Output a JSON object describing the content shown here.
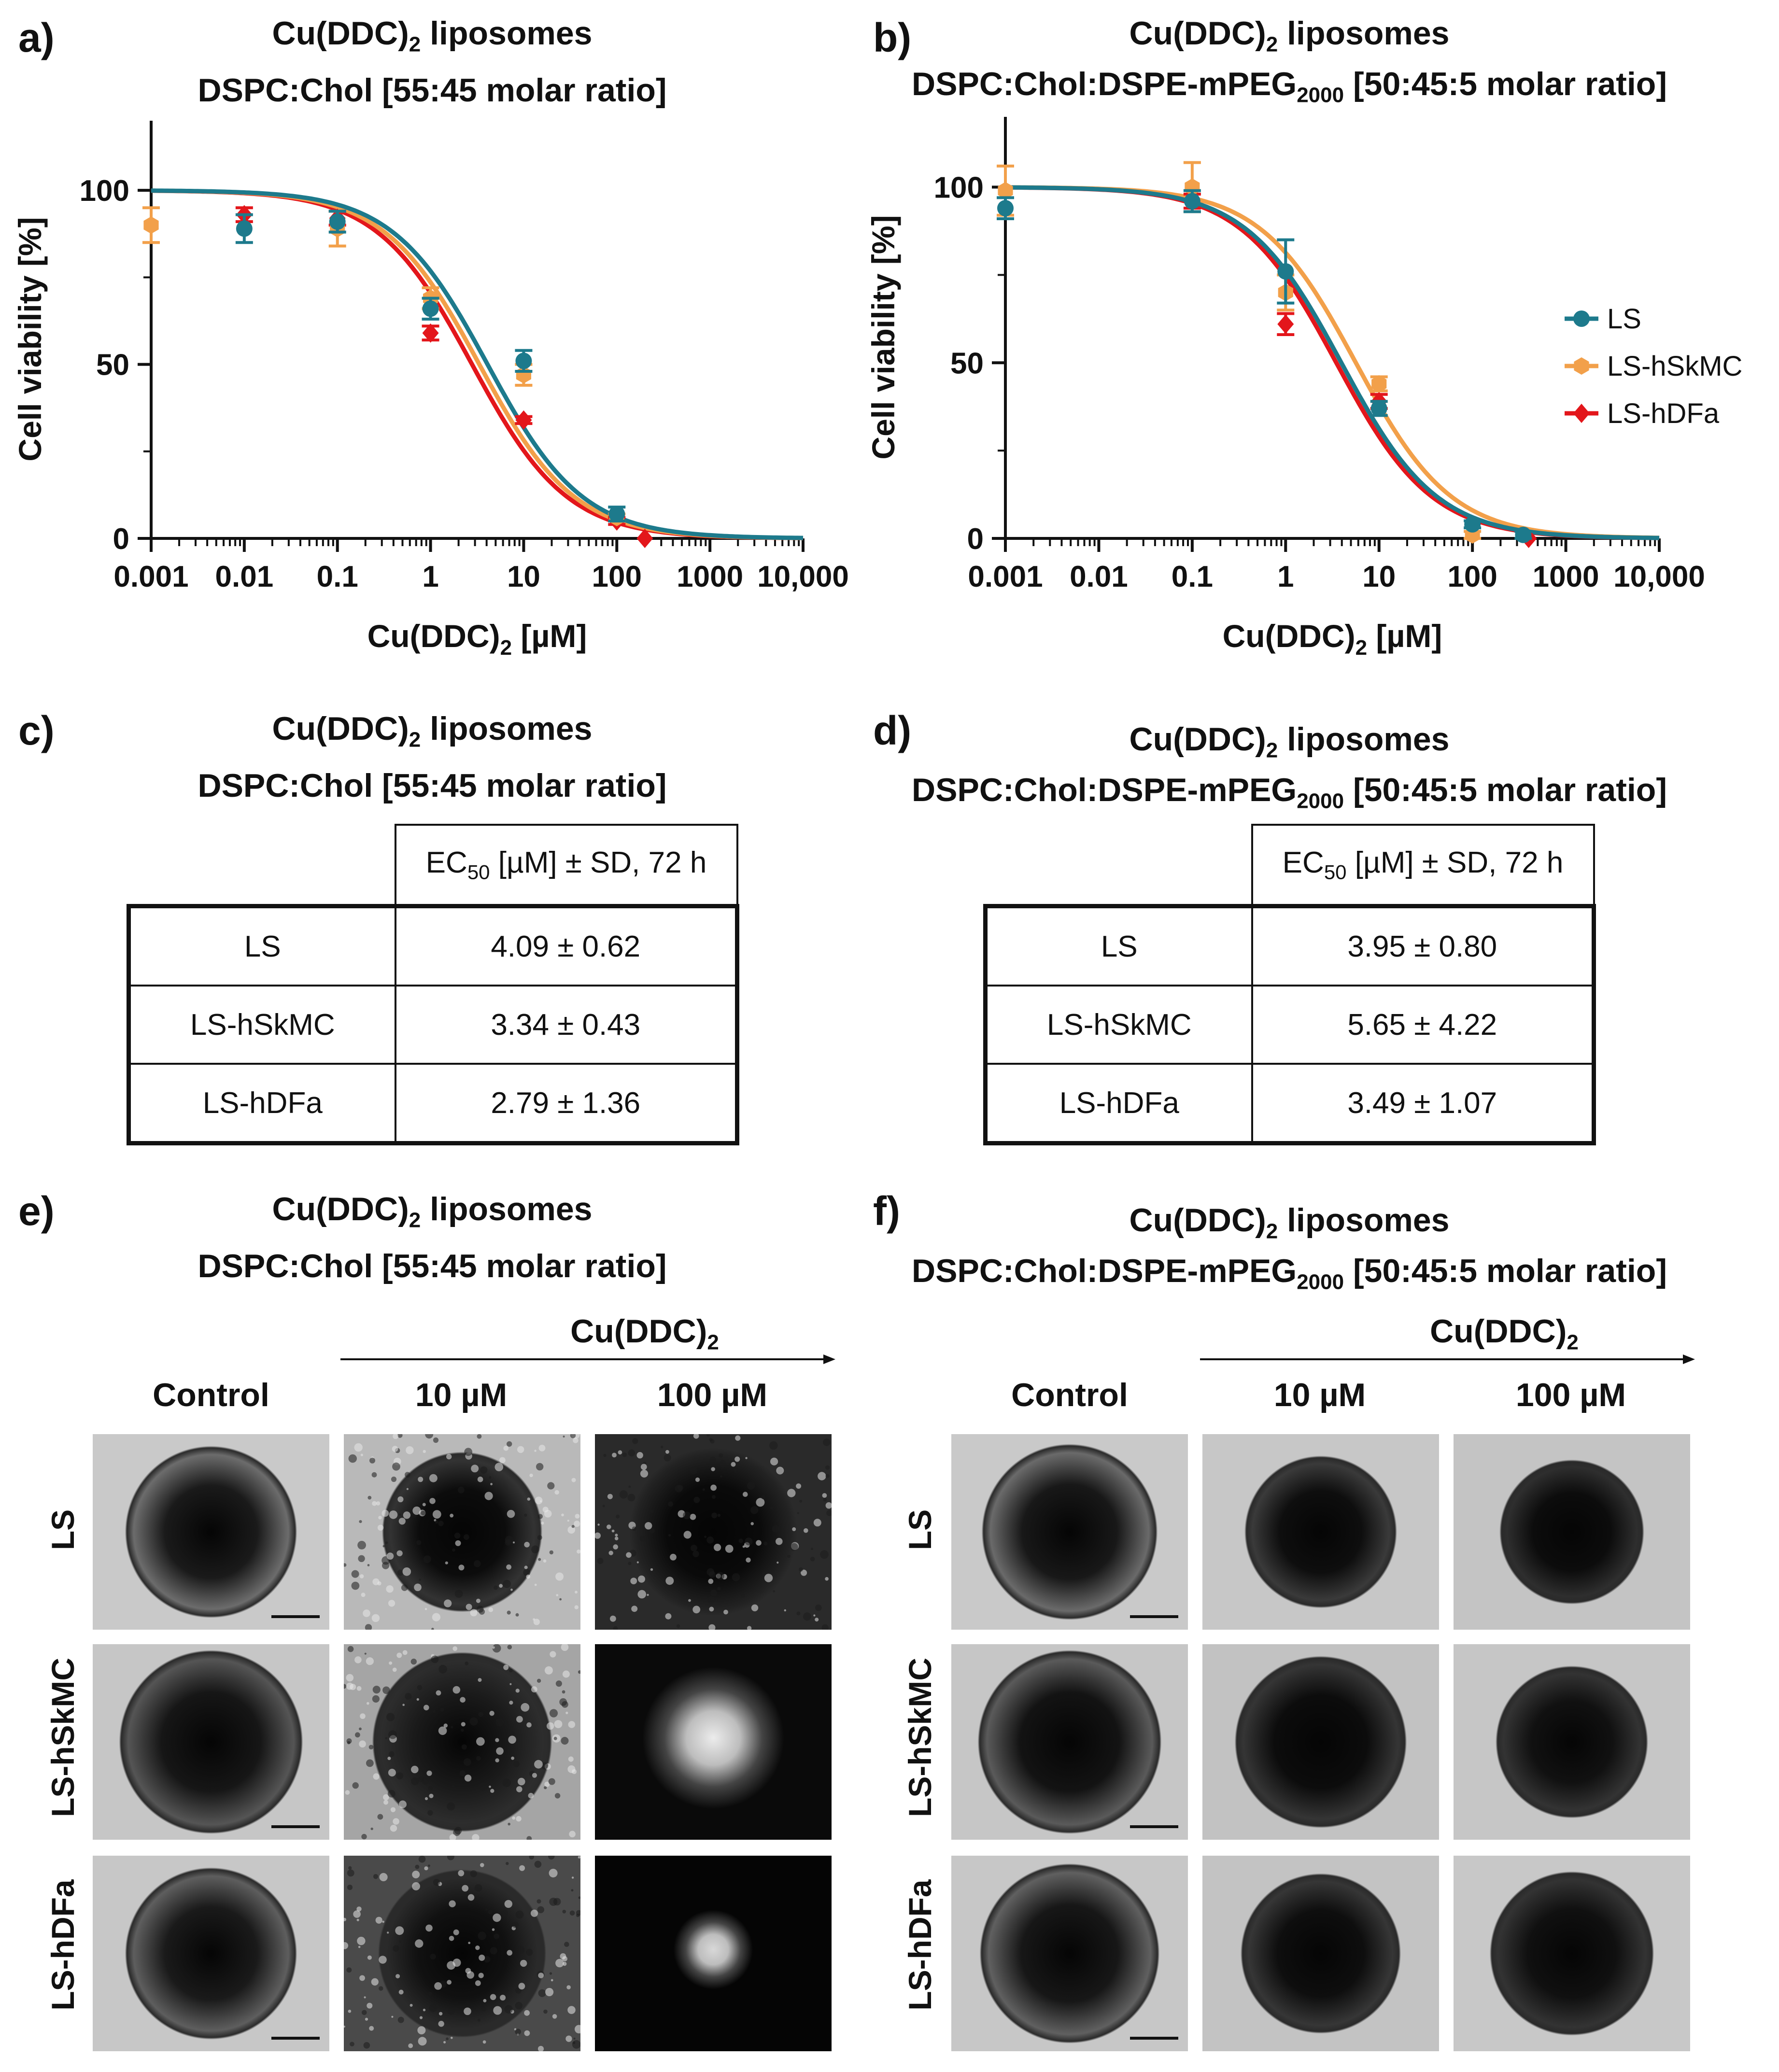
{
  "panels": {
    "a": {
      "label": "a)",
      "title1": "Cu(DDC)",
      "title1_sub": "2",
      "title1_rest": " liposomes",
      "title2": "DSPC:Chol [55:45 molar ratio]"
    },
    "b": {
      "label": "b)",
      "title1": "Cu(DDC)",
      "title1_sub": "2",
      "title1_rest": " liposomes",
      "title2_pre": "DSPC:Chol:DSPE-mPEG",
      "title2_sub": "2000",
      "title2_post": " [50:45:5 molar ratio]"
    },
    "c": {
      "label": "c)",
      "title1": "Cu(DDC)",
      "title1_sub": "2",
      "title1_rest": " liposomes",
      "title2": "DSPC:Chol [55:45 molar ratio]"
    },
    "d": {
      "label": "d)",
      "title1": "Cu(DDC)",
      "title1_sub": "2",
      "title1_rest": " liposomes",
      "title2_pre": "DSPC:Chol:DSPE-mPEG",
      "title2_sub": "2000",
      "title2_post": " [50:45:5 molar ratio]"
    },
    "e": {
      "label": "e)",
      "title1": "Cu(DDC)",
      "title1_sub": "2",
      "title1_rest": " liposomes",
      "title2": "DSPC:Chol [55:45 molar ratio]"
    },
    "f": {
      "label": "f)",
      "title1": "Cu(DDC)",
      "title1_sub": "2",
      "title1_rest": " liposomes",
      "title2_pre": "DSPC:Chol:DSPE-mPEG",
      "title2_sub": "2000",
      "title2_post": " [50:45:5 molar ratio]"
    }
  },
  "chart_data": [
    {
      "type": "scatter",
      "panel": "a",
      "xlabel": "Cu(DDC)",
      "xlabel_sub": "2",
      "xlabel_rest": " [µM]",
      "ylabel": "Cell viability [%]",
      "xscale": "log",
      "xlim": [
        0.001,
        10000
      ],
      "ylim": [
        0,
        120
      ],
      "xtick_labels": [
        "0.001",
        "0.01",
        "0.1",
        "1",
        "10",
        "100",
        "1000",
        "10,000"
      ],
      "ytick_labels": [
        "0",
        "50",
        "100"
      ],
      "series": [
        {
          "name": "LS",
          "color": "#1d7a8c",
          "marker": "circle",
          "ec50": 4.09,
          "x": [
            0.01,
            0.1,
            1,
            10,
            100
          ],
          "y": [
            89,
            91,
            66,
            51,
            7
          ],
          "err": [
            4,
            3,
            3,
            3,
            2
          ]
        },
        {
          "name": "LS-hSkMC",
          "color": "#f2a04a",
          "marker": "hexagon",
          "ec50": 3.34,
          "x": [
            0.001,
            0.1,
            1,
            10,
            100
          ],
          "y": [
            90,
            89,
            69,
            47,
            6
          ],
          "err": [
            5,
            5,
            3,
            3,
            1
          ]
        },
        {
          "name": "LS-hDFa",
          "color": "#e3161b",
          "marker": "diamond",
          "ec50": 2.79,
          "x": [
            0.01,
            0.1,
            1,
            10,
            100,
            200
          ],
          "y": [
            93,
            92,
            59,
            34,
            5,
            0
          ],
          "err": [
            2,
            2,
            2,
            1,
            1,
            0
          ]
        }
      ]
    },
    {
      "type": "scatter",
      "panel": "b",
      "xlabel": "Cu(DDC)",
      "xlabel_sub": "2",
      "xlabel_rest": " [µM]",
      "ylabel": "Cell viability [%]",
      "xscale": "log",
      "xlim": [
        0.001,
        10000
      ],
      "ylim": [
        0,
        120
      ],
      "xtick_labels": [
        "0.001",
        "0.01",
        "0.1",
        "1",
        "10",
        "100",
        "1000",
        "10,000"
      ],
      "ytick_labels": [
        "0",
        "50",
        "100"
      ],
      "legend": "right",
      "series": [
        {
          "name": "LS",
          "color": "#1d7a8c",
          "marker": "circle",
          "ec50": 3.95,
          "x": [
            0.001,
            0.1,
            1,
            10,
            100,
            350
          ],
          "y": [
            94,
            96,
            76,
            37,
            4,
            1
          ],
          "err": [
            3,
            3,
            9,
            2,
            1,
            1
          ]
        },
        {
          "name": "LS-hSkMC",
          "color": "#f2a04a",
          "marker": "hexagon",
          "ec50": 5.65,
          "x": [
            0.001,
            0.1,
            1,
            10,
            100
          ],
          "y": [
            99,
            100,
            70,
            44,
            1
          ],
          "err": [
            7,
            7,
            5,
            2,
            1
          ]
        },
        {
          "name": "LS-hDFa",
          "color": "#e3161b",
          "marker": "diamond",
          "ec50": 3.49,
          "x": [
            0.1,
            1,
            10,
            400
          ],
          "y": [
            96,
            61,
            39,
            0
          ],
          "err": [
            2,
            3,
            2,
            0
          ]
        }
      ]
    }
  ],
  "tables": {
    "c": {
      "header_pre": "EC",
      "header_sub": "50",
      "header_post": " [µM] ± SD, 72 h",
      "rows": [
        {
          "name": "LS",
          "value": "4.09 ± 0.62"
        },
        {
          "name": "LS-hSkMC",
          "value": "3.34 ± 0.43"
        },
        {
          "name": "LS-hDFa",
          "value": "2.79 ± 1.36"
        }
      ]
    },
    "d": {
      "header_pre": "EC",
      "header_sub": "50",
      "header_post": " [µM] ± SD, 72 h",
      "rows": [
        {
          "name": "LS",
          "value": "3.95 ± 0.80"
        },
        {
          "name": "LS-hSkMC",
          "value": "5.65 ± 4.22"
        },
        {
          "name": "LS-hDFa",
          "value": "3.49 ± 1.07"
        }
      ]
    }
  },
  "images": {
    "arrow_label": "Cu(DDC)",
    "arrow_label_sub": "2",
    "columns": [
      "Control",
      "10 µM",
      "100 µM"
    ],
    "rows": [
      "LS",
      "LS-hSkMC",
      "LS-hDFa"
    ]
  },
  "colors": {
    "LS": "#1d7a8c",
    "LS-hSkMC": "#f2a04a",
    "LS-hDFa": "#e3161b"
  }
}
